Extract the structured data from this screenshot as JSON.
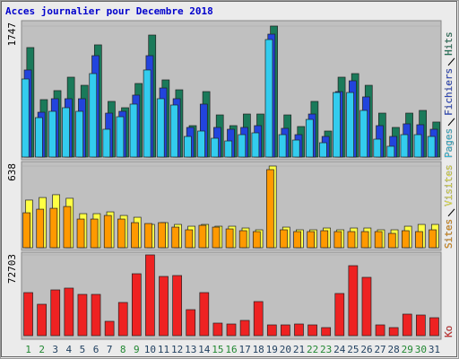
{
  "title": "Acces journalier pour Decembre 2018",
  "title_color": "#0000cc",
  "chart_data": [
    {
      "type": "bar",
      "ylim": [
        0,
        1747
      ],
      "yticks": [
        1747
      ],
      "series": [
        {
          "name": "Pages",
          "color": "#33ccee",
          "values": [
            1041,
            526,
            610,
            658,
            610,
            1113,
            371,
            538,
            706,
            1161,
            778,
            694,
            275,
            347,
            251,
            215,
            299,
            323,
            1567,
            299,
            227,
            502,
            191,
            861,
            861,
            622,
            239,
            144,
            299,
            299,
            275
          ]
        },
        {
          "name": "Fichiers",
          "color": "#2244dd",
          "values": [
            1161,
            598,
            778,
            778,
            778,
            1352,
            586,
            610,
            826,
            1352,
            921,
            778,
            395,
            706,
            395,
            371,
            395,
            419,
            1639,
            383,
            299,
            574,
            275,
            873,
            1017,
            802,
            419,
            275,
            443,
            431,
            371
          ]
        },
        {
          "name": "Hits",
          "color": "#1a7a5a",
          "values": [
            1460,
            766,
            886,
            1065,
            957,
            1496,
            742,
            658,
            981,
            1627,
            1029,
            897,
            419,
            873,
            562,
            419,
            574,
            574,
            1747,
            562,
            407,
            742,
            347,
            1065,
            1113,
            957,
            586,
            395,
            586,
            622,
            467
          ]
        }
      ]
    },
    {
      "type": "bar",
      "ylim": [
        0,
        638
      ],
      "yticks": [
        638
      ],
      "series": [
        {
          "name": "Sites",
          "color": "#ff9900",
          "values": [
            273,
            301,
            308,
            322,
            224,
            224,
            252,
            224,
            196,
            189,
            196,
            161,
            140,
            175,
            161,
            147,
            133,
            126,
            610,
            140,
            126,
            126,
            133,
            126,
            126,
            126,
            126,
            112,
            133,
            126,
            140
          ]
        },
        {
          "name": "Visites",
          "color": "#ffff44",
          "values": [
            372,
            392,
            414,
            386,
            266,
            266,
            280,
            252,
            238,
            182,
            196,
            182,
            168,
            182,
            168,
            168,
            154,
            140,
            638,
            161,
            140,
            140,
            154,
            140,
            154,
            154,
            140,
            140,
            168,
            182,
            182
          ]
        }
      ]
    },
    {
      "type": "bar",
      "ylim": [
        0,
        72703
      ],
      "yticks": [
        72703
      ],
      "categories": [
        "1",
        "2",
        "3",
        "4",
        "5",
        "6",
        "7",
        "8",
        "9",
        "10",
        "11",
        "12",
        "13",
        "14",
        "15",
        "16",
        "17",
        "18",
        "19",
        "20",
        "21",
        "22",
        "23",
        "24",
        "25",
        "26",
        "27",
        "28",
        "29",
        "30",
        "31"
      ],
      "category_colors": [
        "#228833",
        "#228833",
        "#1f3f5f",
        "#1f3f5f",
        "#1f3f5f",
        "#1f3f5f",
        "#1f3f5f",
        "#228833",
        "#228833",
        "#1f3f5f",
        "#1f3f5f",
        "#1f3f5f",
        "#1f3f5f",
        "#1f3f5f",
        "#228833",
        "#228833",
        "#1f3f5f",
        "#1f3f5f",
        "#1f3f5f",
        "#1f3f5f",
        "#1f3f5f",
        "#228833",
        "#228833",
        "#1f3f5f",
        "#1f3f5f",
        "#1f3f5f",
        "#1f3f5f",
        "#1f3f5f",
        "#228833",
        "#228833",
        "#1f3f5f"
      ],
      "series": [
        {
          "name": "Ko",
          "color": "#ee2222",
          "values": [
            38775,
            28273,
            41198,
            42814,
            37159,
            37159,
            12925,
            29889,
            55739,
            72703,
            53316,
            54124,
            23427,
            38775,
            11309,
            10502,
            13733,
            30697,
            9694,
            9694,
            10502,
            9694,
            7270,
            37967,
            63009,
            52508,
            9694,
            7270,
            19387,
            18580,
            16156
          ]
        }
      ]
    }
  ]
}
